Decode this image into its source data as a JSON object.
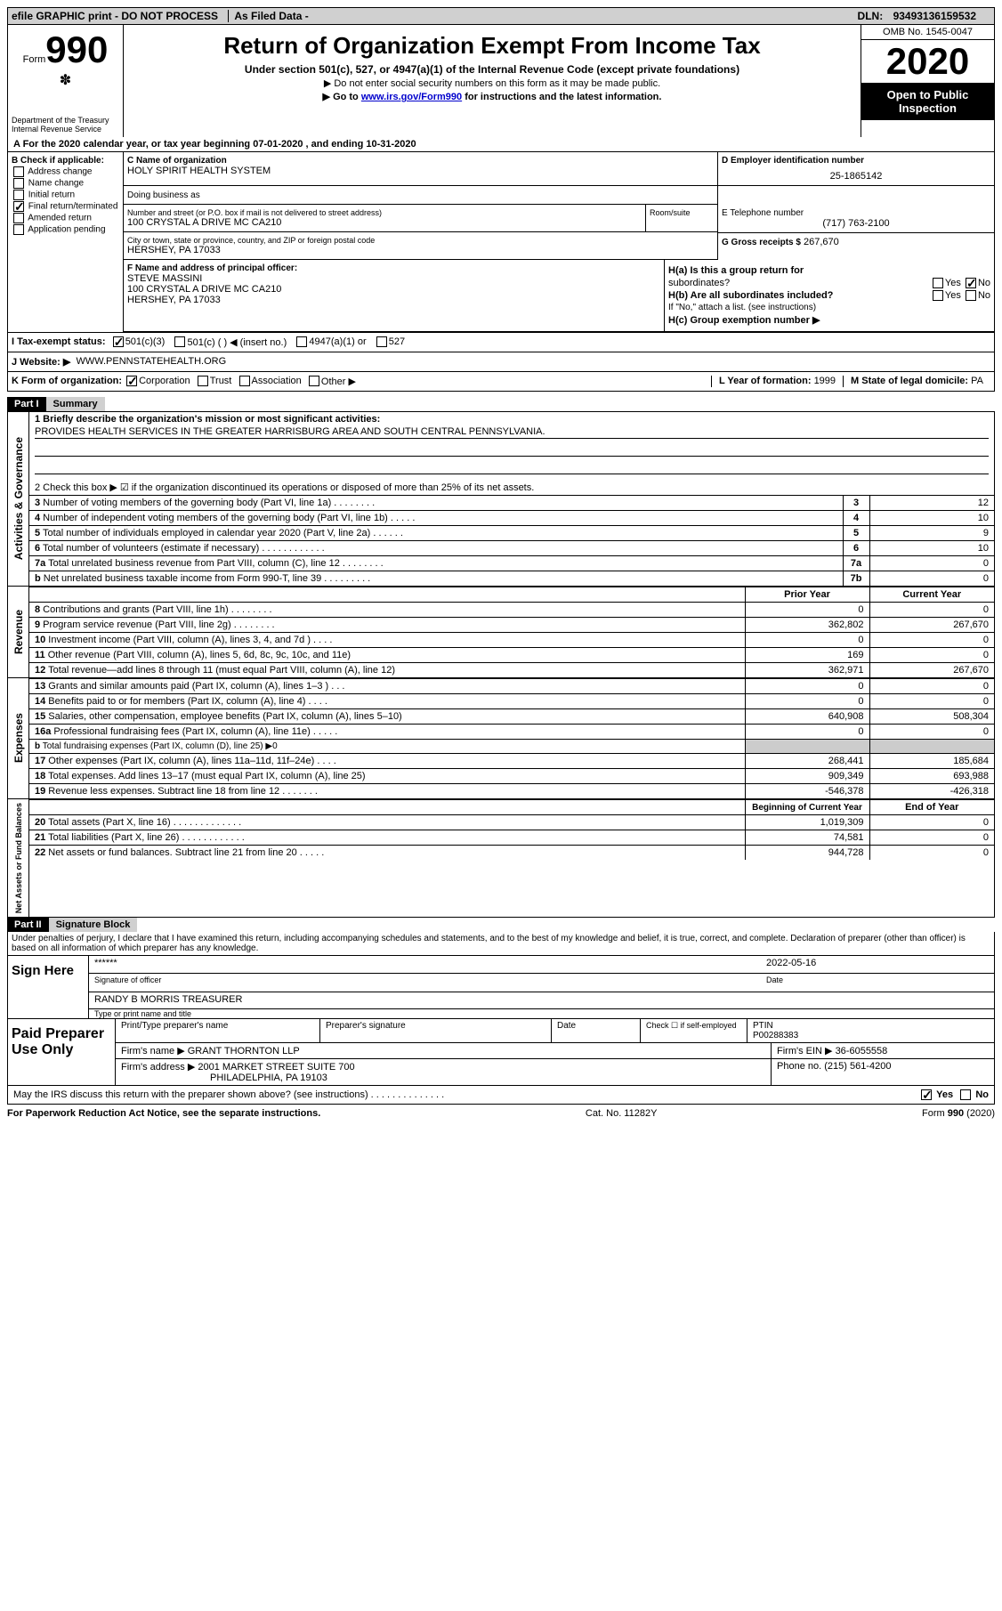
{
  "topbar": {
    "efile": "efile GRAPHIC print - DO NOT PROCESS",
    "asfiled": "As Filed Data -",
    "dln_label": "DLN:",
    "dln": "93493136159532"
  },
  "header": {
    "form_word": "Form",
    "form_num": "990",
    "dept1": "Department of the Treasury",
    "dept2": "Internal Revenue Service",
    "title": "Return of Organization Exempt From Income Tax",
    "subtitle": "Under section 501(c), 527, or 4947(a)(1) of the Internal Revenue Code (except private foundations)",
    "line1": "▶ Do not enter social security numbers on this form as it may be made public.",
    "line2_pre": "▶ Go to ",
    "line2_link": "www.irs.gov/Form990",
    "line2_post": " for instructions and the latest information.",
    "omb": "OMB No. 1545-0047",
    "year": "2020",
    "open": "Open to Public Inspection"
  },
  "sectionA": {
    "text_pre": "A   For the 2020 calendar year, or tax year beginning ",
    "begin": "07-01-2020",
    "mid": "  , and ending ",
    "end": "10-31-2020"
  },
  "sectionB": {
    "label": "B Check if applicable:",
    "items": [
      "Address change",
      "Name change",
      "Initial return",
      "Final return/terminated",
      "Amended return",
      "Application pending"
    ],
    "checked_idx": 3
  },
  "sectionC": {
    "label": "C Name of organization",
    "name": "HOLY SPIRIT HEALTH SYSTEM",
    "dba_label": "Doing business as",
    "street_label": "Number and street (or P.O. box if mail is not delivered to street address)",
    "street": "100 CRYSTAL A DRIVE MC CA210",
    "room_label": "Room/suite",
    "city_label": "City or town, state or province, country, and ZIP or foreign postal code",
    "city": "HERSHEY, PA  17033"
  },
  "sectionD": {
    "label": "D Employer identification number",
    "value": "25-1865142"
  },
  "sectionE": {
    "label": "E Telephone number",
    "value": "(717) 763-2100"
  },
  "sectionG": {
    "label": "G Gross receipts $",
    "value": "267,670"
  },
  "sectionF": {
    "label": "F  Name and address of principal officer:",
    "name": "STEVE MASSINI",
    "addr1": "100 CRYSTAL A DRIVE MC CA210",
    "addr2": "HERSHEY, PA  17033"
  },
  "sectionH": {
    "a_label": "H(a)  Is this a group return for",
    "a_sub": "subordinates?",
    "yes": "Yes",
    "no": "No",
    "b_label": "H(b)  Are all subordinates included?",
    "b_note": "If \"No,\" attach a list. (see instructions)",
    "c_label": "H(c)  Group exemption number ▶"
  },
  "sectionI": {
    "label": "I   Tax-exempt status:",
    "opt1": "501(c)(3)",
    "opt2": "501(c) (   ) ◀ (insert no.)",
    "opt3": "4947(a)(1) or",
    "opt4": "527"
  },
  "sectionJ": {
    "label": "J   Website: ▶",
    "value": "WWW.PENNSTATEHEALTH.ORG"
  },
  "sectionK": {
    "label": "K Form of organization:",
    "opts": [
      "Corporation",
      "Trust",
      "Association",
      "Other ▶"
    ]
  },
  "sectionL": {
    "label": "L Year of formation:",
    "value": "1999"
  },
  "sectionM": {
    "label": "M State of legal domicile:",
    "value": "PA"
  },
  "partI": {
    "header": "Part I",
    "title": "Summary",
    "vert_labels": [
      "Activities & Governance",
      "Revenue",
      "Expenses",
      "Net Assets or Fund Balances"
    ],
    "q1": "1 Briefly describe the organization's mission or most significant activities:",
    "mission": "PROVIDES HEALTH SERVICES IN THE GREATER HARRISBURG AREA AND SOUTH CENTRAL PENNSYLVANIA.",
    "q2": "2  Check this box ▶ ☑ if the organization discontinued its operations or disposed of more than 25% of its net assets.",
    "rows_ag": [
      {
        "n": "3",
        "t": "Number of voting members of the governing body (Part VI, line 1a)  .   .   .   .   .   .   .   .",
        "k": "3",
        "v": "12"
      },
      {
        "n": "4",
        "t": "Number of independent voting members of the governing body (Part VI, line 1b)   .   .   .   .   .",
        "k": "4",
        "v": "10"
      },
      {
        "n": "5",
        "t": "Total number of individuals employed in calendar year 2020 (Part V, line 2a)   .   .   .   .   .   .",
        "k": "5",
        "v": "9"
      },
      {
        "n": "6",
        "t": "Total number of volunteers (estimate if necessary)   .   .   .   .   .   .   .   .   .   .   .   .",
        "k": "6",
        "v": "10"
      },
      {
        "n": "7a",
        "t": "Total unrelated business revenue from Part VIII, column (C), line 12   .   .   .   .   .   .   .   .",
        "k": "7a",
        "v": "0"
      },
      {
        "n": "b",
        "t": "Net unrelated business taxable income from Form 990-T, line 39   .   .   .   .   .   .   .   .   .",
        "k": "7b",
        "v": "0"
      }
    ],
    "col_headers": [
      "Prior Year",
      "Current Year"
    ],
    "rows_rev": [
      {
        "n": "8",
        "t": "Contributions and grants (Part VIII, line 1h)   .   .   .   .   .   .   .   .",
        "p": "0",
        "c": "0"
      },
      {
        "n": "9",
        "t": "Program service revenue (Part VIII, line 2g)   .   .   .   .   .   .   .   .",
        "p": "362,802",
        "c": "267,670"
      },
      {
        "n": "10",
        "t": "Investment income (Part VIII, column (A), lines 3, 4, and 7d )   .   .   .   .",
        "p": "0",
        "c": "0"
      },
      {
        "n": "11",
        "t": "Other revenue (Part VIII, column (A), lines 5, 6d, 8c, 9c, 10c, and 11e)",
        "p": "169",
        "c": "0"
      },
      {
        "n": "12",
        "t": "Total revenue—add lines 8 through 11 (must equal Part VIII, column (A), line 12)",
        "p": "362,971",
        "c": "267,670"
      }
    ],
    "rows_exp": [
      {
        "n": "13",
        "t": "Grants and similar amounts paid (Part IX, column (A), lines 1–3 )   .   .   .",
        "p": "0",
        "c": "0"
      },
      {
        "n": "14",
        "t": "Benefits paid to or for members (Part IX, column (A), line 4)   .   .   .   .",
        "p": "0",
        "c": "0"
      },
      {
        "n": "15",
        "t": "Salaries, other compensation, employee benefits (Part IX, column (A), lines 5–10)",
        "p": "640,908",
        "c": "508,304"
      },
      {
        "n": "16a",
        "t": "Professional fundraising fees (Part IX, column (A), line 11e)   .   .   .   .   .",
        "p": "0",
        "c": "0"
      },
      {
        "n": "b",
        "t": "Total fundraising expenses (Part IX, column (D), line 25) ▶0",
        "p": "",
        "c": ""
      },
      {
        "n": "17",
        "t": "Other expenses (Part IX, column (A), lines 11a–11d, 11f–24e)   .   .   .   .",
        "p": "268,441",
        "c": "185,684"
      },
      {
        "n": "18",
        "t": "Total expenses. Add lines 13–17 (must equal Part IX, column (A), line 25)",
        "p": "909,349",
        "c": "693,988"
      },
      {
        "n": "19",
        "t": "Revenue less expenses. Subtract line 18 from line 12 .   .   .   .   .   .   .",
        "p": "-546,378",
        "c": "-426,318"
      }
    ],
    "col_headers2": [
      "Beginning of Current Year",
      "End of Year"
    ],
    "rows_net": [
      {
        "n": "20",
        "t": "Total assets (Part X, line 16)   .   .   .   .   .   .   .   .   .   .   .   .   .",
        "p": "1,019,309",
        "c": "0"
      },
      {
        "n": "21",
        "t": "Total liabilities (Part X, line 26)   .   .   .   .   .   .   .   .   .   .   .   .",
        "p": "74,581",
        "c": "0"
      },
      {
        "n": "22",
        "t": "Net assets or fund balances. Subtract line 21 from line 20 .   .   .   .   .",
        "p": "944,728",
        "c": "0"
      }
    ]
  },
  "partII": {
    "header": "Part II",
    "title": "Signature Block",
    "penalty": "Under penalties of perjury, I declare that I have examined this return, including accompanying schedules and statements, and to the best of my knowledge and belief, it is true, correct, and complete. Declaration of preparer (other than officer) is based on all information of which preparer has any knowledge.",
    "sign_label": "Sign Here",
    "stars": "******",
    "sig_of_officer": "Signature of officer",
    "date": "2022-05-16",
    "date_label": "Date",
    "name_title": "RANDY B MORRIS TREASURER",
    "name_title_label": "Type or print name and title",
    "paid_label": "Paid Preparer Use Only",
    "prep_name_label": "Print/Type preparer's name",
    "prep_sig_label": "Preparer's signature",
    "check_label": "Check ☐ if self-employed",
    "ptin_label": "PTIN",
    "ptin": "P00288383",
    "firm_name_label": "Firm's name   ▶",
    "firm_name": "GRANT THORNTON LLP",
    "firm_ein_label": "Firm's EIN ▶",
    "firm_ein": "36-6055558",
    "firm_addr_label": "Firm's address ▶",
    "firm_addr1": "2001 MARKET STREET SUITE 700",
    "firm_addr2": "PHILADELPHIA, PA  19103",
    "phone_label": "Phone no.",
    "phone": "(215) 561-4200",
    "discuss": "May the IRS discuss this return with the preparer shown above? (see instructions)   .   .   .   .   .   .   .   .   .   .   .   .   .   .",
    "yes": "Yes",
    "no": "No"
  },
  "footer": {
    "paperwork": "For Paperwork Reduction Act Notice, see the separate instructions.",
    "cat": "Cat. No. 11282Y",
    "form": "Form 990 (2020)"
  }
}
